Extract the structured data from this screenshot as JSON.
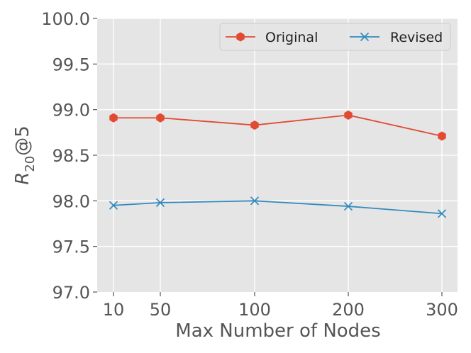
{
  "chart_data": {
    "type": "line",
    "title": "",
    "xlabel": "Max Number of Nodes",
    "ylabel": {
      "base": "R",
      "sub": "20",
      "rest": "@5"
    },
    "x": [
      10,
      50,
      100,
      200,
      300
    ],
    "x_tick_labels": [
      "10",
      "50",
      "100",
      "200",
      "300"
    ],
    "ylim": [
      97.0,
      100.0
    ],
    "y_ticks": [
      97.0,
      97.5,
      98.0,
      98.5,
      99.0,
      99.5,
      100.0
    ],
    "y_tick_labels": [
      "97.0",
      "97.5",
      "98.0",
      "98.5",
      "99.0",
      "99.5",
      "100.0"
    ],
    "grid": true,
    "legend_position": "top-right",
    "series": [
      {
        "name": "Original",
        "color": "#E24A33",
        "marker": "hexagon",
        "values": [
          98.91,
          98.91,
          98.83,
          98.94,
          98.71
        ]
      },
      {
        "name": "Revised",
        "color": "#348ABD",
        "marker": "x",
        "values": [
          97.95,
          97.98,
          98.0,
          97.94,
          97.86
        ]
      }
    ],
    "colors": {
      "plot_background": "#E5E5E5",
      "grid": "#FFFFFF",
      "text": "#555555"
    }
  }
}
